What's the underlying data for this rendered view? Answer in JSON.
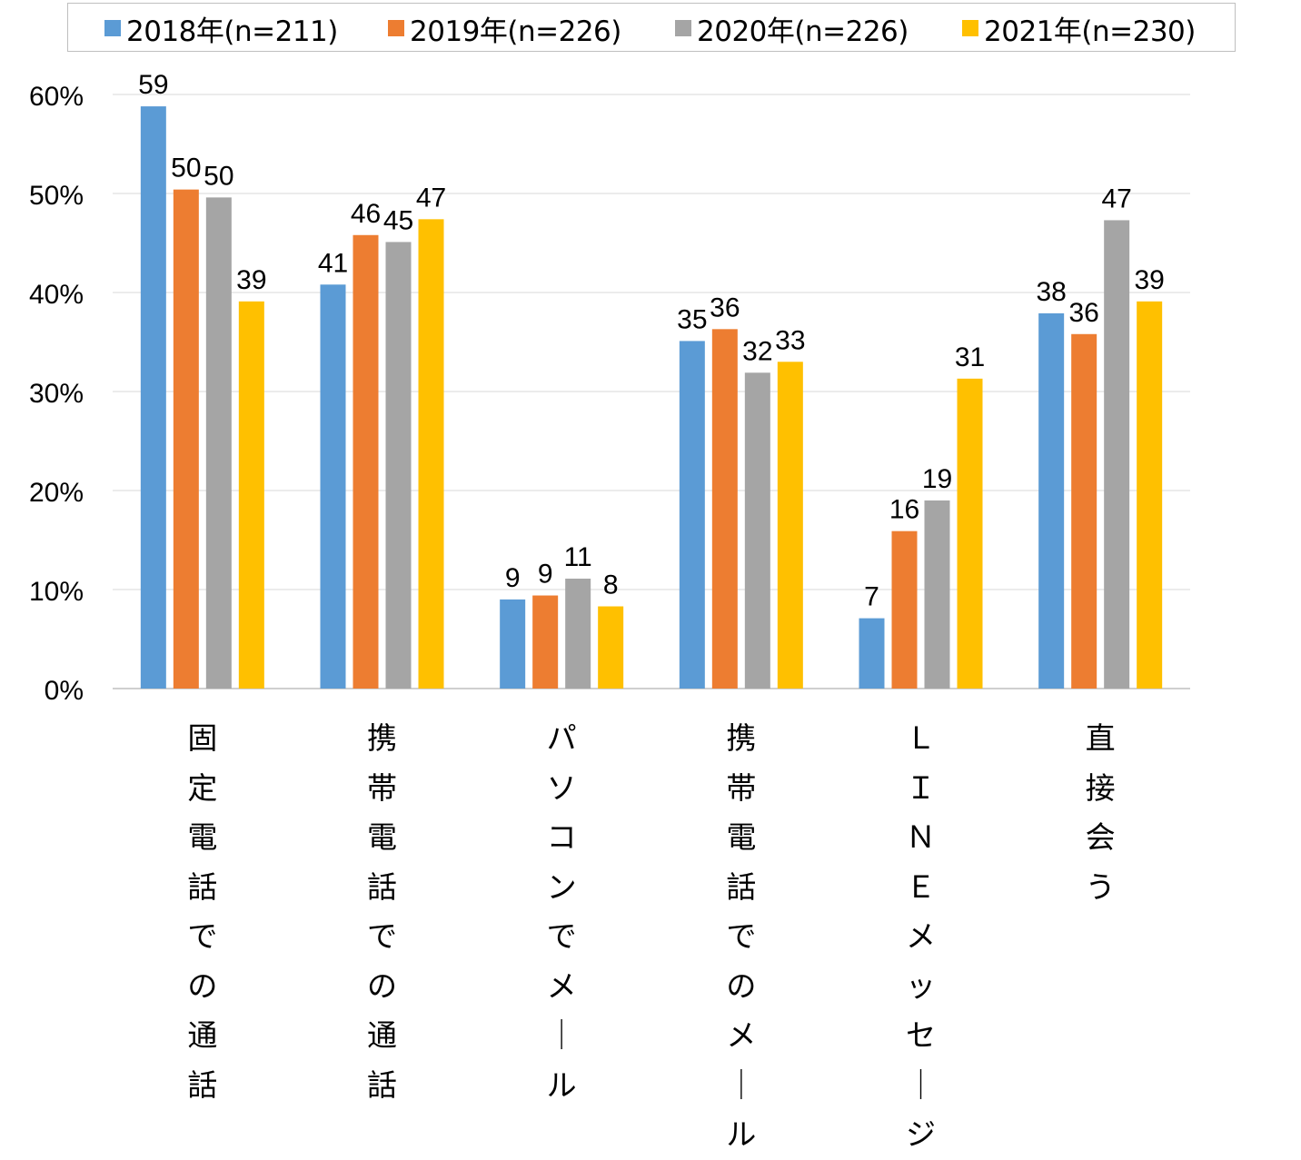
{
  "chart_data": {
    "type": "bar",
    "categories": [
      "固定電話での通話",
      "携帯電話での通話",
      "パソコンでメール",
      "携帯電話でのメール",
      "ＬＩＮＥメッセージ",
      "直接会う"
    ],
    "series": [
      {
        "name": "2018年(n=211)",
        "color": "#5b9bd5",
        "values": [
          58.8,
          40.8,
          9.0,
          35.1,
          7.1,
          37.9
        ],
        "labels": [
          "59",
          "41",
          "9",
          "35",
          "7",
          "38"
        ]
      },
      {
        "name": "2019年(n=226)",
        "color": "#ed7d31",
        "values": [
          50.4,
          45.8,
          9.4,
          36.3,
          15.9,
          35.8
        ],
        "labels": [
          "50",
          "46",
          "9",
          "36",
          "16",
          "36"
        ]
      },
      {
        "name": "2020年(n=226)",
        "color": "#a5a5a5",
        "values": [
          49.6,
          45.1,
          11.1,
          31.9,
          19.0,
          47.3
        ],
        "labels": [
          "50",
          "45",
          "11",
          "32",
          "19",
          "47"
        ]
      },
      {
        "name": "2021年(n=230)",
        "color": "#ffc000",
        "values": [
          39.1,
          47.4,
          8.3,
          33.0,
          31.3,
          39.1
        ],
        "labels": [
          "39",
          "47",
          "8",
          "33",
          "31",
          "39"
        ]
      }
    ],
    "ylim": [
      0,
      60
    ],
    "yticks": [
      "0%",
      "10%",
      "20%",
      "30%",
      "40%",
      "50%",
      "60%"
    ],
    "grid": true,
    "legend_position": "top"
  }
}
